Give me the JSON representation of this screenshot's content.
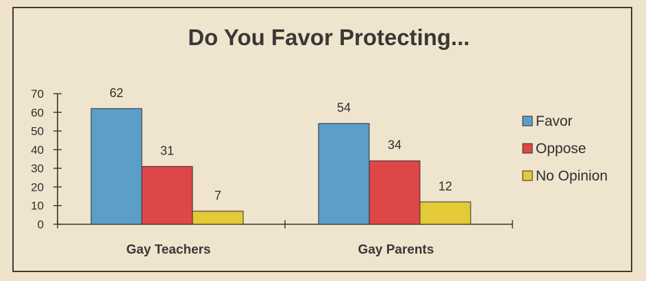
{
  "chart_data": {
    "type": "bar",
    "title": "Do You Favor Protecting...",
    "categories": [
      "Gay Teachers",
      "Gay Parents"
    ],
    "series": [
      {
        "name": "Favor",
        "values": [
          62,
          54
        ],
        "color": "#5b9fc9"
      },
      {
        "name": "Oppose",
        "values": [
          31,
          34
        ],
        "color": "#de4747"
      },
      {
        "name": "No Opinion",
        "values": [
          7,
          12
        ],
        "color": "#e4c938"
      }
    ],
    "ylim": [
      0,
      70
    ],
    "yticks": [
      "0",
      "10",
      "20",
      "30",
      "40",
      "50",
      "60",
      "70"
    ],
    "grid": false,
    "legend": "right"
  }
}
